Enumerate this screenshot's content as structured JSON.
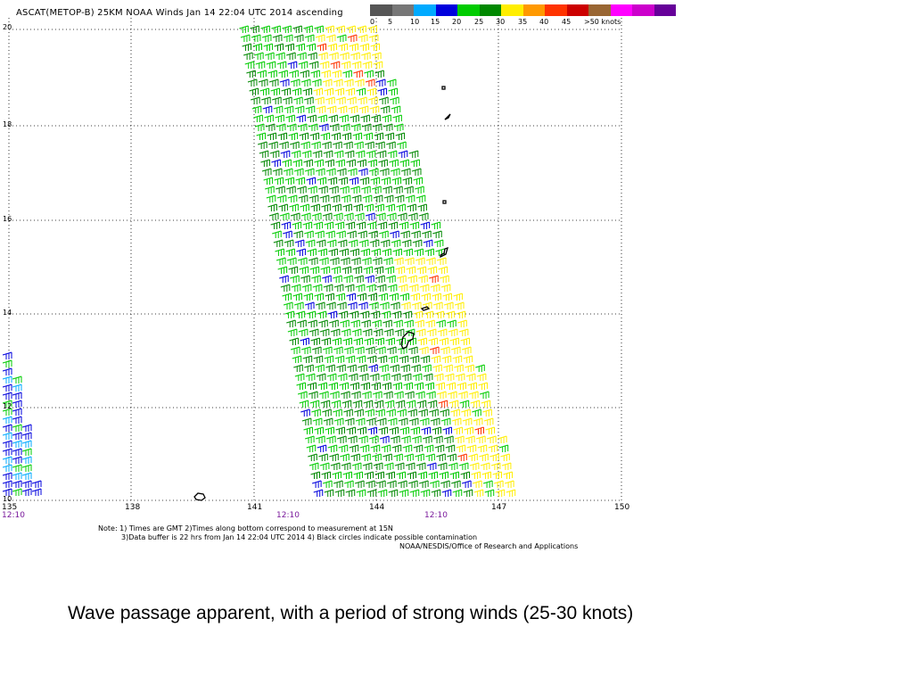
{
  "title": "ASCAT(METOP-B) 25KM NOAA Winds Jan 14 22:04 UTC 2014 ascending",
  "legend": {
    "colors": [
      "#555555",
      "#777777",
      "#00aaff",
      "#0000dd",
      "#00cc00",
      "#008800",
      "#ffee00",
      "#ff9900",
      "#ff3300",
      "#cc0000",
      "#996633",
      "#ff00ff",
      "#cc00cc",
      "#660099"
    ],
    "labels": [
      "0",
      "5",
      "10",
      "15",
      "20",
      "25",
      "30",
      "35",
      "40",
      "45",
      ">50 knots"
    ]
  },
  "axes": {
    "lat_labels": [
      "20",
      "18",
      "16",
      "14",
      "12",
      "10"
    ],
    "lon_labels": [
      "135",
      "138",
      "141",
      "144",
      "147",
      "150"
    ]
  },
  "times": [
    "12:10",
    "12:10",
    "12:10"
  ],
  "notes": {
    "line1": "Note: 1) Times are GMT 2)Times along bottom correspond to measurement at 15N",
    "line2": "3)Data buffer is 22 hrs from Jan 14 22:04 UTC 2014 4) Black circles indicate possible contamination",
    "credit": "NOAA/NESDIS/Office of Research and Applications"
  },
  "caption": "Wave passage apparent, with a period of strong winds (25-30 knots)"
}
